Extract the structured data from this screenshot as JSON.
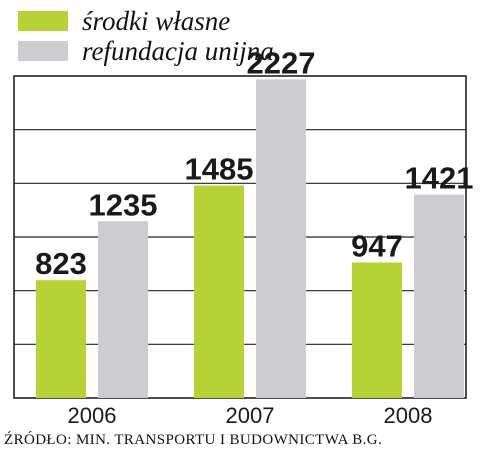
{
  "chart_data": {
    "type": "bar",
    "categories": [
      "2006",
      "2007",
      "2008"
    ],
    "series": [
      {
        "name": "środki własne",
        "values": [
          823,
          1485,
          947
        ]
      },
      {
        "name": "refundacja unijna",
        "values": [
          1235,
          2227,
          1421
        ]
      }
    ],
    "ylim": [
      0,
      2250
    ],
    "grid": true,
    "legend": "top-left",
    "colors": {
      "own": "#b5d334",
      "eu": "#cbcdd0",
      "grid": "#222222"
    }
  },
  "source": "ŹRÓDŁO: MIN. TRANSPORTU I BUDOWNICTWA  B.G."
}
